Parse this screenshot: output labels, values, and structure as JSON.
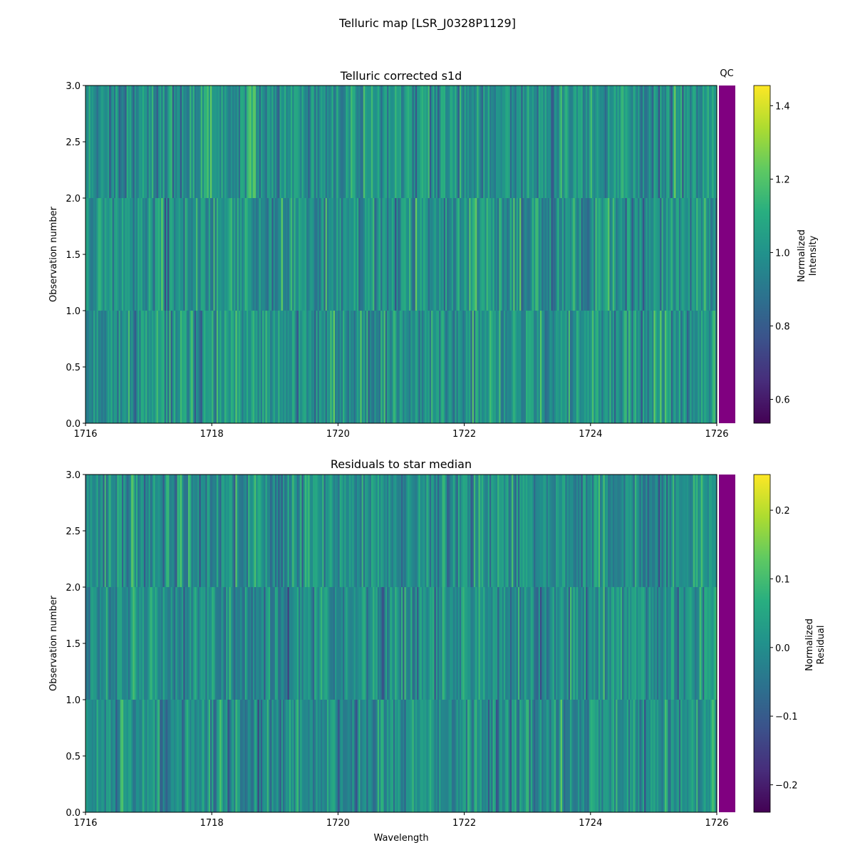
{
  "figure": {
    "title": "Telluric map [LSR_J0328P1129]",
    "qc_label": "QC",
    "qc_color": "#800080",
    "colormap": "viridis"
  },
  "chart_data": [
    {
      "type": "heatmap",
      "title": "Telluric corrected s1d",
      "xlabel": "",
      "ylabel": "Observation number",
      "xlim": [
        1716,
        1726
      ],
      "ylim": [
        0,
        3
      ],
      "xticks": [
        1716,
        1718,
        1720,
        1722,
        1724,
        1726
      ],
      "xtick_labels": [
        "1716",
        "1718",
        "1720",
        "1722",
        "1724",
        "1726"
      ],
      "yticks": [
        0,
        0.5,
        1,
        1.5,
        2,
        2.5,
        3
      ],
      "ytick_labels": [
        "0.0",
        "0.5",
        "1.0",
        "1.5",
        "2.0",
        "2.5",
        "3.0"
      ],
      "rows": 3,
      "columns": 400,
      "value_mean": 1.0,
      "value_spread": 0.15,
      "seed": 11,
      "colorbar": {
        "label": [
          "Normalized",
          "Intensity"
        ],
        "range": [
          0.535,
          1.455
        ],
        "ticks": [
          0.6,
          0.8,
          1.0,
          1.2,
          1.4
        ],
        "tick_labels": [
          "0.6",
          "0.8",
          "1.0",
          "1.2",
          "1.4"
        ]
      }
    },
    {
      "type": "heatmap",
      "title": "Residuals to star median",
      "xlabel": "Wavelength",
      "ylabel": "Observation number",
      "xlim": [
        1716,
        1726
      ],
      "ylim": [
        0,
        3
      ],
      "xticks": [
        1716,
        1718,
        1720,
        1722,
        1724,
        1726
      ],
      "xtick_labels": [
        "1716",
        "1718",
        "1720",
        "1722",
        "1724",
        "1726"
      ],
      "yticks": [
        0,
        0.5,
        1,
        1.5,
        2,
        2.5,
        3
      ],
      "ytick_labels": [
        "0.0",
        "0.5",
        "1.0",
        "1.5",
        "2.0",
        "2.5",
        "3.0"
      ],
      "rows": 3,
      "columns": 400,
      "value_mean": 0.0,
      "value_spread": 0.08,
      "seed": 29,
      "colorbar": {
        "label": [
          "Normalized",
          "Residual"
        ],
        "range": [
          -0.24,
          0.252
        ],
        "ticks": [
          -0.2,
          -0.1,
          0.0,
          0.1,
          0.2
        ],
        "tick_labels": [
          "−0.2",
          "−0.1",
          "0.0",
          "0.1",
          "0.2"
        ]
      }
    }
  ]
}
